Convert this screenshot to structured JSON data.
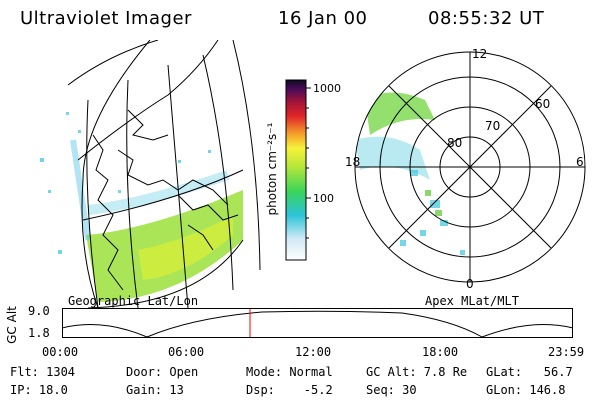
{
  "header": {
    "instrument": "Ultraviolet Imager",
    "date": "16 Jan 00",
    "time": "08:55:32 UT"
  },
  "panels": {
    "left_label": "Geographic Lat/Lon",
    "right_label": "Apex MLat/MLT"
  },
  "colorbar": {
    "unit_label": "photon cm⁻²s⁻¹",
    "ticks": [
      "1000",
      "100"
    ]
  },
  "polar": {
    "lat_labels": [
      "80",
      "70",
      "60"
    ],
    "mlt_labels": [
      "12",
      "18",
      "6",
      "0"
    ]
  },
  "altitude": {
    "axis_label": "GC Alt",
    "y_ticks": [
      "9.0",
      "1.8"
    ],
    "x_ticks": [
      "00:00",
      "06:00",
      "12:00",
      "18:00",
      "23:59"
    ],
    "marker_color": "#ff0000"
  },
  "status": {
    "flt": "Flt: 1304",
    "ip": "IP: 18.0",
    "door": "Door: Open",
    "gain": "Gain: 13",
    "mode": "Mode: Normal",
    "dsp": "Dsp:    -5.2",
    "gcalt": "GC Alt: 7.8 Re",
    "seq": "Seq: 30",
    "glat": "GLat:   56.7",
    "glon": "GLon: 146.8"
  }
}
